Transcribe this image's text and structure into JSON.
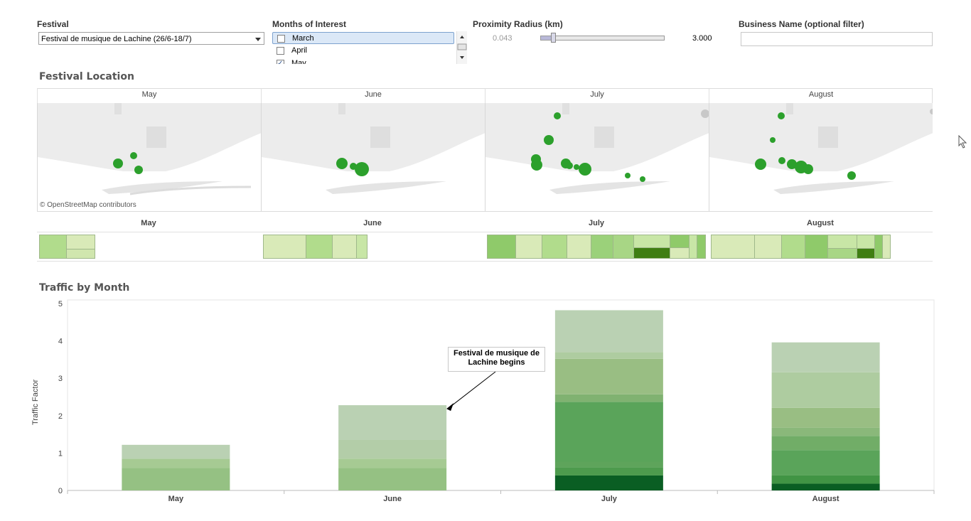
{
  "filters": {
    "festival": {
      "label": "Festival",
      "value": "Festival de musique de Lachine (26/6-18/7)"
    },
    "months": {
      "label": "Months of Interest",
      "items": [
        {
          "label": "March",
          "checked": false,
          "selected": true
        },
        {
          "label": "April",
          "checked": false,
          "selected": false
        },
        {
          "label": "May",
          "checked": true,
          "selected": false
        }
      ]
    },
    "proximity": {
      "label": "Proximity Radius (km)",
      "min": "0.043",
      "max": "3.000",
      "value_fraction": 0.1
    },
    "business": {
      "label": "Business Name (optional filter)",
      "value": ""
    }
  },
  "festival_location": {
    "title": "Festival Location",
    "months": [
      "May",
      "June",
      "July",
      "August"
    ],
    "attribution": "© OpenStreetMap contributors",
    "marker_color": "#2ca02c"
  },
  "treemap": {
    "months": [
      "May",
      "June",
      "July",
      "August"
    ],
    "colors": [
      "#b1dc8c",
      "#d9eab8",
      "#c8e6a6",
      "#8fca6a",
      "#3f7e12"
    ]
  },
  "traffic": {
    "title": "Traffic by Month",
    "ylabel": "Traffic Factor",
    "callout": "Festival de musique de Lachine begins"
  },
  "chart_data": {
    "type": "bar",
    "title": "Traffic by Month",
    "xlabel": "",
    "ylabel": "Traffic Factor",
    "categories": [
      "May",
      "June",
      "July",
      "August"
    ],
    "ylim": [
      0,
      5
    ],
    "yticks": [
      0,
      1,
      2,
      3,
      4,
      5
    ],
    "totals": [
      1.22,
      2.28,
      4.82,
      3.96
    ],
    "stacks": [
      [
        0.6,
        0.25,
        0.37
      ],
      [
        0.6,
        0.25,
        0.5,
        0.93
      ],
      [
        0.4,
        0.22,
        0.15,
        1.6,
        0.2,
        0.95,
        0.18,
        1.12
      ],
      [
        0.18,
        0.22,
        0.68,
        0.38,
        0.22,
        0.53,
        0.95,
        0.8
      ]
    ],
    "stack_colors": [
      [
        "#95c183",
        "#a6ca93",
        "#bad1b3"
      ],
      [
        "#95c183",
        "#a6ca93",
        "#b3cda8",
        "#bad1b3"
      ],
      [
        "#0a5e23",
        "#4d9b4d",
        "#5ea45b",
        "#5aa45a",
        "#80b271",
        "#99be83",
        "#aecca0",
        "#bad1b3"
      ],
      [
        "#0a5e23",
        "#419444",
        "#5aa45a",
        "#71ad67",
        "#8ab87a",
        "#99be83",
        "#aecca0",
        "#bad1b3"
      ]
    ]
  }
}
